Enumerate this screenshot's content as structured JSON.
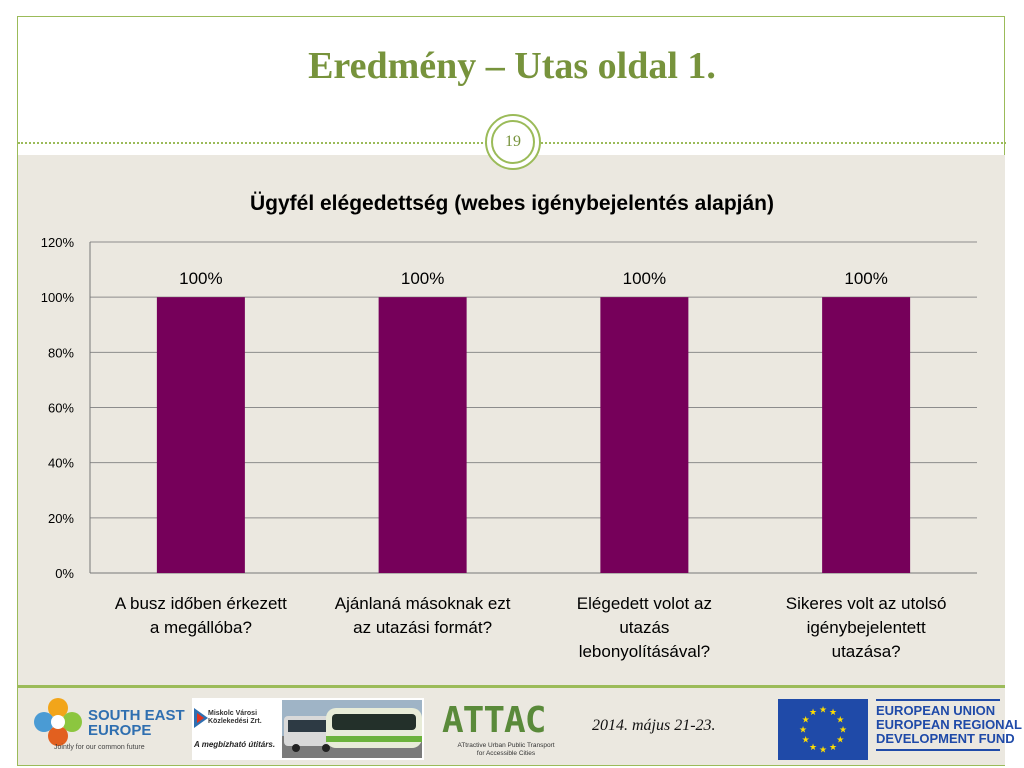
{
  "slide": {
    "title": "Eredmény – Utas oldal 1.",
    "page_number": "19"
  },
  "chart_data": {
    "type": "bar",
    "title": "Ügyfél elégedettség (webes igénybejelentés alapján)",
    "categories": [
      [
        "A busz időben érkezett",
        "a megállóba?"
      ],
      [
        "Ajánlaná másoknak ezt",
        "az utazási formát?"
      ],
      [
        "Elégedett volot az",
        "utazás",
        "lebonyolításával?"
      ],
      [
        "Sikeres volt az utolsó",
        "igénybejelentett",
        "utazása?"
      ]
    ],
    "values": [
      100,
      100,
      100,
      100
    ],
    "data_labels": [
      "100%",
      "100%",
      "100%",
      "100%"
    ],
    "y_ticks": [
      "0%",
      "20%",
      "40%",
      "60%",
      "80%",
      "100%",
      "120%"
    ],
    "ylim": [
      0,
      120
    ],
    "grid": true,
    "bar_color": "#76005a"
  },
  "footer": {
    "see_logo": {
      "line1": "SOUTH EAST",
      "line2": "EUROPE",
      "tagline": "Jointly for our common future"
    },
    "mvk_logo": {
      "name_line1": "Miskolc Városi",
      "name_line2": "Közlekedési Zrt.",
      "slogan": "A megbízható útitárs."
    },
    "attac_logo": {
      "word": "ATTAC",
      "sub_line1": "ATtractive Urban Public Transport",
      "sub_line2": "for Accessible Cities"
    },
    "date": "2014. május 21-23.",
    "eu_logo": {
      "line1": "EUROPEAN UNION",
      "line2": "EUROPEAN REGIONAL",
      "line3": "DEVELOPMENT FUND"
    }
  },
  "colors": {
    "accent": "#9bbb59",
    "title": "#77933c",
    "background": "#ebe8e0",
    "eu_blue": "#1f4aa8"
  }
}
